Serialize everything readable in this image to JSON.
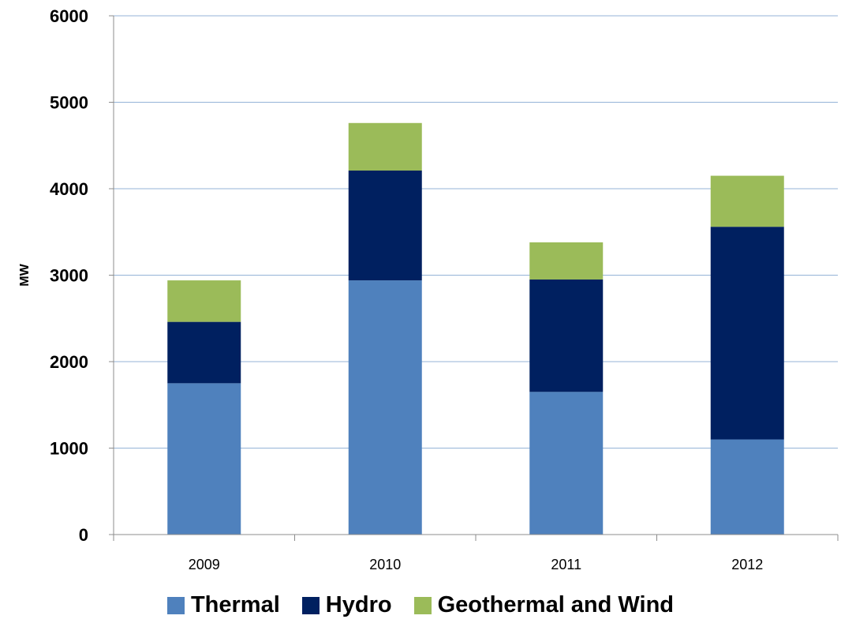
{
  "chart_data": {
    "type": "bar",
    "stacked": true,
    "categories": [
      "2009",
      "2010",
      "2011",
      "2012"
    ],
    "series": [
      {
        "name": "Thermal",
        "values": [
          1750,
          2940,
          1650,
          1100
        ],
        "color": "#4F81BD"
      },
      {
        "name": "Hydro",
        "values": [
          710,
          1270,
          1300,
          2460
        ],
        "color": "#002060"
      },
      {
        "name": "Geothermal and Wind",
        "values": [
          480,
          550,
          430,
          590
        ],
        "color": "#9BBB59"
      }
    ],
    "title": "",
    "xlabel": "",
    "ylabel": "MW",
    "ylim": [
      0,
      6000
    ],
    "yticks": [
      "0",
      "1000",
      "2000",
      "3000",
      "4000",
      "5000",
      "6000"
    ],
    "grid": "horizontal",
    "gridColor": "#95B3D7",
    "axisColor": "#8C8C8C",
    "legend_position": "bottom"
  }
}
